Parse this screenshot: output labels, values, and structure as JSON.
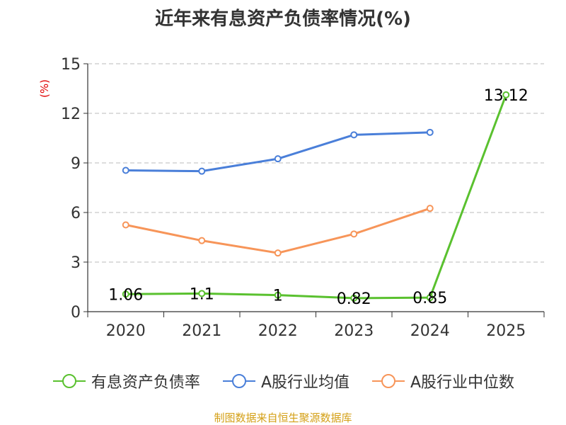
{
  "chart_data": {
    "type": "line",
    "title": "近年来有息资产负债率情况(%)",
    "ylabel": "(%)",
    "categories": [
      "2020",
      "2021",
      "2022",
      "2023",
      "2024",
      "2025"
    ],
    "ylim": [
      0,
      15
    ],
    "yticks": [
      0,
      3,
      6,
      9,
      12,
      15
    ],
    "grid": true,
    "legend_position": "bottom",
    "series": [
      {
        "name": "有息资产负债率",
        "color": "#5ac12f",
        "values": [
          1.06,
          1.1,
          1.0,
          0.82,
          0.85,
          13.12
        ],
        "labels": [
          "1.06",
          "1.1",
          "1",
          "0.82",
          "0.85",
          "13.12"
        ]
      },
      {
        "name": "A股行业均值",
        "color": "#4a7fd9",
        "values": [
          8.55,
          8.5,
          9.25,
          10.7,
          10.85,
          null
        ]
      },
      {
        "name": "A股行业中位数",
        "color": "#f79559",
        "values": [
          5.25,
          4.3,
          3.55,
          4.7,
          6.25,
          null
        ]
      }
    ]
  },
  "source": "制图数据来自恒生聚源数据库"
}
